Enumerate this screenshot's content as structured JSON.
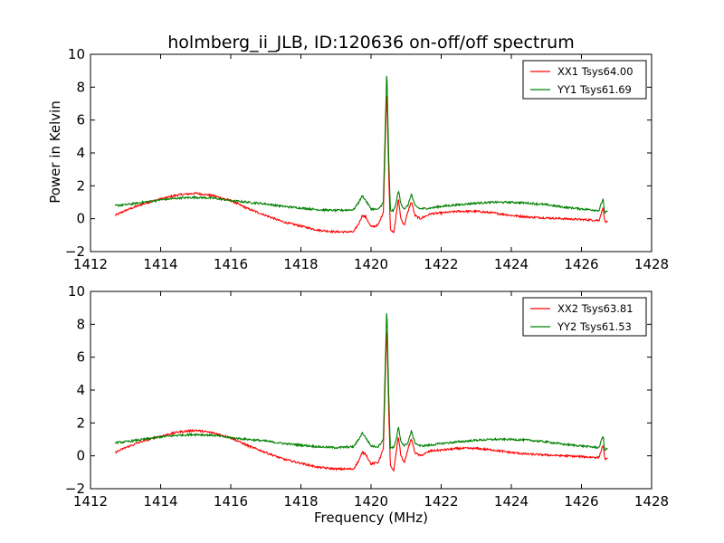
{
  "figure": {
    "title": "holmberg_ii_JLB, ID:120636 on-off/off spectrum",
    "xlabel": "Frequency (MHz)",
    "ylabel": "Power in Kelvin"
  },
  "colors": {
    "XX": "#ff0000",
    "YY": "#008000"
  },
  "chart_data": [
    {
      "type": "line",
      "title": "holmberg_ii_JLB, ID:120636 on-off/off spectrum",
      "xlabel": "",
      "ylabel": "Power in Kelvin",
      "xlim": [
        1412,
        1428
      ],
      "ylim": [
        -2,
        10
      ],
      "xticks": [
        1412,
        1414,
        1416,
        1418,
        1420,
        1422,
        1424,
        1426,
        1428
      ],
      "xtick_labels": [
        "1412",
        "1414",
        "1416",
        "1418",
        "1420",
        "1422",
        "1424",
        "1426",
        "1428"
      ],
      "yticks": [
        -2,
        0,
        2,
        4,
        6,
        8,
        10
      ],
      "ytick_labels": [
        "−2",
        "0",
        "2",
        "4",
        "6",
        "8",
        "10"
      ],
      "grid": false,
      "legend": "top-right",
      "series": [
        {
          "name": "XX1 Tsys64.00",
          "color": "#ff0000",
          "x": [
            1412.7,
            1413.0,
            1413.5,
            1414.0,
            1414.5,
            1415.0,
            1415.5,
            1416.0,
            1416.5,
            1417.0,
            1417.5,
            1418.0,
            1418.5,
            1419.0,
            1419.5,
            1419.65,
            1419.75,
            1419.85,
            1420.0,
            1420.2,
            1420.35,
            1420.45,
            1420.5,
            1420.55,
            1420.65,
            1420.72,
            1420.78,
            1420.85,
            1420.95,
            1421.05,
            1421.15,
            1421.25,
            1421.4,
            1421.7,
            1422.0,
            1422.5,
            1423.0,
            1423.5,
            1424.0,
            1424.5,
            1425.0,
            1425.5,
            1426.0,
            1426.5,
            1426.62,
            1426.66,
            1426.7,
            1426.75
          ],
          "y": [
            0.2,
            0.5,
            0.9,
            1.2,
            1.45,
            1.55,
            1.4,
            1.1,
            0.6,
            0.2,
            -0.2,
            -0.45,
            -0.7,
            -0.8,
            -0.8,
            -0.3,
            0.2,
            0.1,
            -0.5,
            -0.4,
            0.4,
            8.0,
            3.0,
            -0.6,
            -0.9,
            0.3,
            1.2,
            0.0,
            -0.4,
            0.4,
            1.05,
            0.2,
            0.0,
            0.3,
            0.35,
            0.45,
            0.45,
            0.35,
            0.2,
            0.1,
            0.05,
            0.0,
            -0.05,
            -0.1,
            0.7,
            -0.15,
            -0.2,
            -0.2
          ]
        },
        {
          "name": "YY1 Tsys61.69",
          "color": "#008000",
          "x": [
            1412.7,
            1413.0,
            1413.5,
            1414.0,
            1414.5,
            1415.0,
            1415.5,
            1416.0,
            1416.5,
            1417.0,
            1417.5,
            1418.0,
            1418.5,
            1419.0,
            1419.5,
            1419.65,
            1419.75,
            1419.85,
            1420.0,
            1420.2,
            1420.35,
            1420.45,
            1420.5,
            1420.55,
            1420.65,
            1420.72,
            1420.78,
            1420.85,
            1420.95,
            1421.05,
            1421.15,
            1421.25,
            1421.4,
            1421.7,
            1422.0,
            1422.5,
            1423.0,
            1423.5,
            1424.0,
            1424.5,
            1425.0,
            1425.5,
            1426.0,
            1426.5,
            1426.62,
            1426.66,
            1426.7,
            1426.75
          ],
          "y": [
            0.8,
            0.85,
            1.0,
            1.15,
            1.25,
            1.3,
            1.25,
            1.1,
            1.0,
            0.9,
            0.75,
            0.65,
            0.55,
            0.5,
            0.55,
            1.0,
            1.4,
            1.1,
            0.6,
            0.55,
            1.0,
            9.2,
            4.0,
            0.5,
            0.5,
            1.0,
            1.75,
            0.9,
            0.6,
            0.8,
            1.5,
            0.8,
            0.6,
            0.65,
            0.75,
            0.85,
            0.95,
            1.0,
            1.0,
            0.95,
            0.85,
            0.7,
            0.6,
            0.5,
            1.25,
            0.3,
            0.4,
            0.45
          ]
        }
      ]
    },
    {
      "type": "line",
      "title": "",
      "xlabel": "Frequency (MHz)",
      "ylabel": "",
      "xlim": [
        1412,
        1428
      ],
      "ylim": [
        -2,
        10
      ],
      "xticks": [
        1412,
        1414,
        1416,
        1418,
        1420,
        1422,
        1424,
        1426,
        1428
      ],
      "xtick_labels": [
        "1412",
        "1414",
        "1416",
        "1418",
        "1420",
        "1422",
        "1424",
        "1426",
        "1428"
      ],
      "yticks": [
        -2,
        0,
        2,
        4,
        6,
        8,
        10
      ],
      "ytick_labels": [
        "−2",
        "0",
        "2",
        "4",
        "6",
        "8",
        "10"
      ],
      "grid": false,
      "legend": "top-right",
      "series": [
        {
          "name": "XX2 Tsys63.81",
          "color": "#ff0000",
          "x": [
            1412.7,
            1413.0,
            1413.5,
            1414.0,
            1414.5,
            1415.0,
            1415.5,
            1416.0,
            1416.5,
            1417.0,
            1417.5,
            1418.0,
            1418.5,
            1419.0,
            1419.5,
            1419.65,
            1419.75,
            1419.85,
            1420.0,
            1420.2,
            1420.35,
            1420.45,
            1420.5,
            1420.55,
            1420.65,
            1420.72,
            1420.78,
            1420.85,
            1420.95,
            1421.05,
            1421.15,
            1421.25,
            1421.4,
            1421.7,
            1422.0,
            1422.5,
            1423.0,
            1423.5,
            1424.0,
            1424.5,
            1425.0,
            1425.5,
            1426.0,
            1426.5,
            1426.62,
            1426.66,
            1426.7,
            1426.75
          ],
          "y": [
            0.2,
            0.5,
            0.9,
            1.2,
            1.45,
            1.55,
            1.4,
            1.1,
            0.6,
            0.2,
            -0.2,
            -0.45,
            -0.7,
            -0.8,
            -0.8,
            -0.3,
            0.2,
            0.1,
            -0.5,
            -0.4,
            0.4,
            8.0,
            3.0,
            -0.6,
            -0.9,
            0.3,
            1.2,
            0.0,
            -0.4,
            0.4,
            1.05,
            0.2,
            0.0,
            0.3,
            0.35,
            0.45,
            0.45,
            0.35,
            0.2,
            0.1,
            0.05,
            0.0,
            -0.05,
            -0.1,
            0.7,
            -0.15,
            -0.2,
            -0.2
          ]
        },
        {
          "name": "YY2 Tsys61.53",
          "color": "#008000",
          "x": [
            1412.7,
            1413.0,
            1413.5,
            1414.0,
            1414.5,
            1415.0,
            1415.5,
            1416.0,
            1416.5,
            1417.0,
            1417.5,
            1418.0,
            1418.5,
            1419.0,
            1419.5,
            1419.65,
            1419.75,
            1419.85,
            1420.0,
            1420.2,
            1420.35,
            1420.45,
            1420.5,
            1420.55,
            1420.65,
            1420.72,
            1420.78,
            1420.85,
            1420.95,
            1421.05,
            1421.15,
            1421.25,
            1421.4,
            1421.7,
            1422.0,
            1422.5,
            1423.0,
            1423.5,
            1424.0,
            1424.5,
            1425.0,
            1425.5,
            1426.0,
            1426.5,
            1426.62,
            1426.66,
            1426.7,
            1426.75
          ],
          "y": [
            0.8,
            0.85,
            1.0,
            1.15,
            1.25,
            1.3,
            1.25,
            1.1,
            1.0,
            0.9,
            0.75,
            0.65,
            0.55,
            0.5,
            0.55,
            1.0,
            1.4,
            1.1,
            0.6,
            0.55,
            1.0,
            9.2,
            4.0,
            0.5,
            0.5,
            1.0,
            1.75,
            0.9,
            0.6,
            0.8,
            1.5,
            0.8,
            0.6,
            0.65,
            0.75,
            0.85,
            0.95,
            1.0,
            1.0,
            0.95,
            0.85,
            0.7,
            0.6,
            0.5,
            1.25,
            0.3,
            0.4,
            0.45
          ]
        }
      ]
    }
  ]
}
